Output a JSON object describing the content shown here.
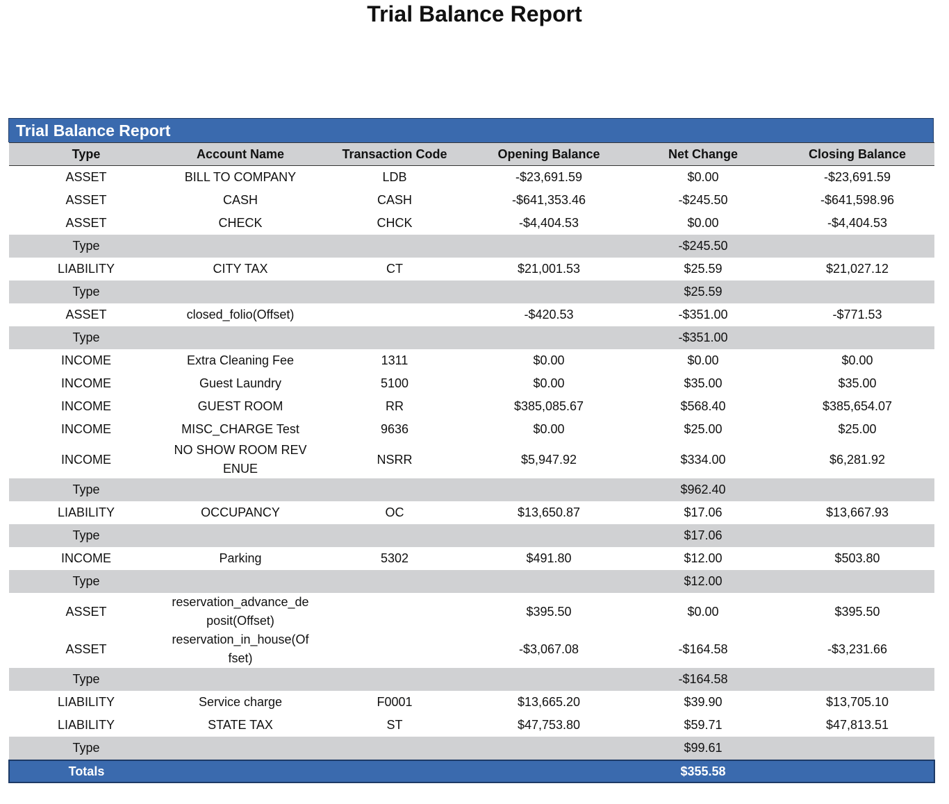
{
  "title": "Trial Balance Report",
  "table": {
    "title": "Trial Balance Report",
    "header": [
      "Type",
      "Account Name",
      "Transaction Code",
      "Opening Balance",
      "Net Change",
      "Closing Balance"
    ],
    "rows": [
      {
        "type": "ASSET",
        "account": "BILL TO COMPANY",
        "code": "LDB",
        "opening": "-$23,691.59",
        "net": "$0.00",
        "closing": "-$23,691.59"
      },
      {
        "type": "ASSET",
        "account": "CASH",
        "code": "CASH",
        "opening": "-$641,353.46",
        "net": "-$245.50",
        "closing": "-$641,598.96"
      },
      {
        "type": "ASSET",
        "account": "CHECK",
        "code": "CHCK",
        "opening": "-$4,404.53",
        "net": "$0.00",
        "closing": "-$4,404.53"
      },
      {
        "type": "Type",
        "net": "-$245.50"
      },
      {
        "type": "LIABILITY",
        "account": "CITY TAX",
        "code": "CT",
        "opening": "$21,001.53",
        "net": "$25.59",
        "closing": "$21,027.12"
      },
      {
        "type": "Type",
        "net": "$25.59"
      },
      {
        "type": "ASSET",
        "account": "closed_folio(Offset)",
        "opening": "-$420.53",
        "net": "-$351.00",
        "closing": "-$771.53"
      },
      {
        "type": "Type",
        "net": "-$351.00"
      },
      {
        "type": "INCOME",
        "account": "Extra Cleaning Fee",
        "code": "1311",
        "opening": "$0.00",
        "net": "$0.00",
        "closing": "$0.00"
      },
      {
        "type": "INCOME",
        "account": "Guest Laundry",
        "code": "5100",
        "opening": "$0.00",
        "net": "$35.00",
        "closing": "$35.00"
      },
      {
        "type": "INCOME",
        "account": "GUEST ROOM",
        "code": "RR",
        "opening": "$385,085.67",
        "net": "$568.40",
        "closing": "$385,654.07"
      },
      {
        "type": "INCOME",
        "account": "MISC_CHARGE Test",
        "code": "9636",
        "opening": "$0.00",
        "net": "$25.00",
        "closing": "$25.00"
      },
      {
        "type": "INCOME",
        "account": "NO SHOW ROOM REVENUE",
        "code": "NSRR",
        "opening": "$5,947.92",
        "net": "$334.00",
        "closing": "$6,281.92"
      },
      {
        "type": "Type",
        "net": "$962.40"
      },
      {
        "type": "LIABILITY",
        "account": "OCCUPANCY",
        "code": "OC",
        "opening": "$13,650.87",
        "net": "$17.06",
        "closing": "$13,667.93"
      },
      {
        "type": "Type",
        "net": "$17.06"
      },
      {
        "type": "INCOME",
        "account": "Parking",
        "code": "5302",
        "opening": "$491.80",
        "net": "$12.00",
        "closing": "$503.80"
      },
      {
        "type": "Type",
        "net": "$12.00"
      },
      {
        "type": "ASSET",
        "account": "reservation_advance_deposit(Offset)",
        "opening": "$395.50",
        "net": "$0.00",
        "closing": "$395.50"
      },
      {
        "type": "ASSET",
        "account": "reservation_in_house(Offset)",
        "opening": "-$3,067.08",
        "net": "-$164.58",
        "closing": "-$3,231.66"
      },
      {
        "type": "Type",
        "net": "-$164.58"
      },
      {
        "type": "LIABILITY",
        "account": "Service charge",
        "code": "F0001",
        "opening": "$13,665.20",
        "net": "$39.90",
        "closing": "$13,705.10"
      },
      {
        "type": "LIABILITY",
        "account": "STATE TAX",
        "code": "ST",
        "opening": "$47,753.80",
        "net": "$59.71",
        "closing": "$47,813.51"
      },
      {
        "type": "Type",
        "net": "$99.61"
      }
    ],
    "totals": {
      "label": "Totals",
      "net": "$355.58"
    }
  }
}
